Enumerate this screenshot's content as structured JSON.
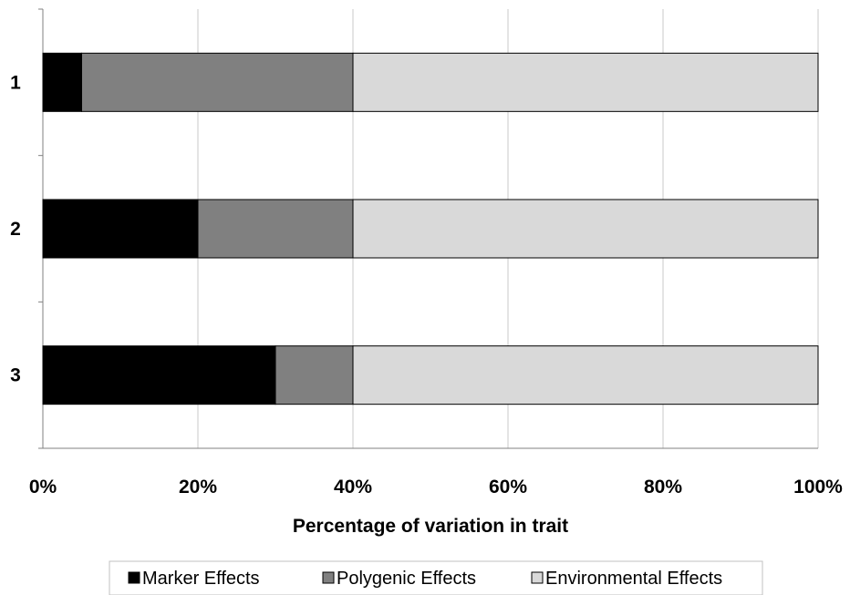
{
  "chart_data": {
    "type": "bar",
    "orientation": "horizontal",
    "stacked": "percent",
    "categories": [
      "1",
      "2",
      "3"
    ],
    "series": [
      {
        "name": "Marker Effects",
        "values": [
          5,
          20,
          30
        ],
        "color": "#000000"
      },
      {
        "name": "Polygenic Effects",
        "values": [
          35,
          20,
          10
        ],
        "color": "#808080"
      },
      {
        "name": "Environmental Effects",
        "values": [
          60,
          60,
          60
        ],
        "color": "#d9d9d9"
      }
    ],
    "x_ticks": [
      "0%",
      "20%",
      "40%",
      "60%",
      "80%",
      "100%"
    ],
    "xlim": [
      0,
      100
    ],
    "xlabel": "Percentage of variation in trait",
    "ylabel": "",
    "title": "",
    "grid": "vertical",
    "legend_position": "bottom"
  }
}
